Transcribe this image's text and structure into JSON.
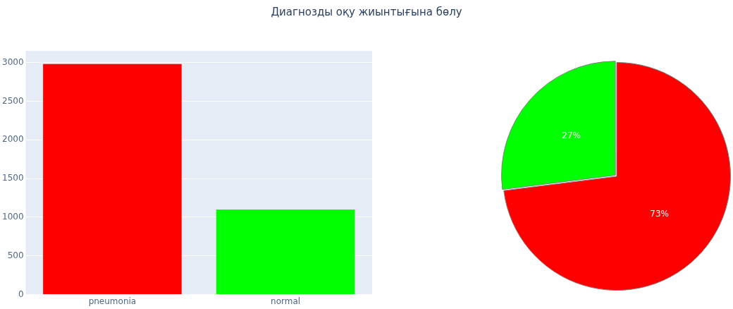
{
  "chart_data": [
    {
      "type": "bar",
      "title": "Диагнозды оқу жиынтығына бөлу",
      "categories": [
        "pneumonia",
        "normal"
      ],
      "values": [
        2980,
        1100
      ],
      "colors": [
        "#ff0000",
        "#00ff00"
      ],
      "ylim": [
        0,
        3150
      ],
      "yticks": [
        0,
        500,
        1000,
        1500,
        2000,
        2500,
        3000
      ],
      "grid": "y"
    },
    {
      "type": "pie",
      "categories": [
        null,
        null
      ],
      "values": [
        73,
        27
      ],
      "colors": [
        "#ff0000",
        "#00ff00"
      ],
      "value_labels": [
        "73%",
        "27%"
      ]
    }
  ]
}
